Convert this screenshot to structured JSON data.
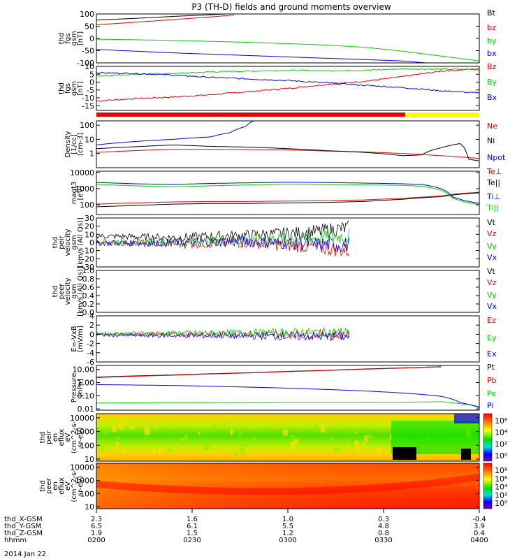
{
  "title": "P3 (TH-D) fields and ground moments overview",
  "colors": {
    "black": "#000000",
    "red": "#e60000",
    "green": "#00d000",
    "blue": "#0000ee",
    "yellow": "#ffff00"
  },
  "chart_data": [
    {
      "type": "line",
      "panel": "fgs_gsm",
      "ylabel_lines": [
        "thd",
        "fgs",
        "gsm",
        "[nT]"
      ],
      "ylim": [
        -100,
        100
      ],
      "yticks": [
        100,
        50,
        0,
        -50,
        -100
      ],
      "series": [
        {
          "name": "Bt",
          "color": "black",
          "x": [
            0,
            0.1,
            0.2,
            0.3,
            0.36
          ],
          "y": [
            75,
            82,
            90,
            97,
            102
          ]
        },
        {
          "name": "bz",
          "color": "red",
          "x": [
            0,
            0.1,
            0.2,
            0.3,
            0.36
          ],
          "y": [
            56,
            66,
            77,
            88,
            96
          ]
        },
        {
          "name": "by",
          "color": "green",
          "x": [
            0,
            0.2,
            0.4,
            0.6,
            0.7,
            0.8,
            0.9,
            1.0
          ],
          "y": [
            -3,
            -8,
            -16,
            -27,
            -36,
            -52,
            -72,
            -92
          ]
        },
        {
          "name": "bx",
          "color": "blue",
          "x": [
            0,
            0.1,
            0.2,
            0.4,
            0.6,
            0.8,
            0.86
          ],
          "y": [
            -45,
            -52,
            -59,
            -70,
            -81,
            -92,
            -100
          ]
        }
      ],
      "legend": [
        "Bt",
        "bz",
        "by",
        "bx"
      ]
    },
    {
      "type": "line",
      "panel": "fgs_gsm_zoom",
      "ylabel_lines": [
        "thd",
        "fgs",
        "gsm",
        "[nT]"
      ],
      "ylim": [
        -18,
        10
      ],
      "yticks": [
        10,
        5,
        0,
        -5,
        -10,
        -15
      ],
      "series": [
        {
          "name": "Bz",
          "color": "red",
          "x": [
            0,
            0.1,
            0.2,
            0.3,
            0.4,
            0.5,
            0.6,
            0.7,
            0.8,
            0.9,
            1.0
          ],
          "y": [
            -12,
            -10.5,
            -9.5,
            -8,
            -6,
            -4,
            -1.5,
            0.5,
            3.5,
            7,
            8.5
          ]
        },
        {
          "name": "By",
          "color": "green",
          "x": [
            0,
            0.1,
            0.2,
            0.3,
            0.4,
            0.5,
            0.6,
            0.7,
            0.8,
            0.9,
            1.0
          ],
          "y": [
            4,
            5,
            5.5,
            6.5,
            7,
            7.5,
            7.2,
            7.5,
            8.5,
            8.2,
            8
          ]
        },
        {
          "name": "Bx",
          "color": "blue",
          "x": [
            0,
            0.1,
            0.2,
            0.3,
            0.4,
            0.5,
            0.6,
            0.7,
            0.8,
            0.9,
            1.0
          ],
          "y": [
            6,
            5.5,
            4.5,
            3,
            2,
            1,
            -0.5,
            -2,
            -3.5,
            -5.5,
            -7
          ]
        }
      ],
      "legend": [
        "Bz",
        "By",
        "Bx"
      ]
    },
    {
      "type": "line",
      "panel": "density",
      "ylabel_lines": [
        "Density",
        "[1/cc]",
        "[cm-3]"
      ],
      "yscale": "log",
      "ylim": [
        0.1,
        200
      ],
      "yticks": [
        100,
        10,
        1
      ],
      "series": [
        {
          "name": "Ne",
          "color": "red",
          "x": [
            0,
            0.1,
            0.2,
            0.3,
            0.4,
            0.5,
            0.6,
            0.7,
            0.8,
            0.9,
            1.0
          ],
          "y": [
            1.2,
            1.6,
            2.0,
            2.0,
            1.9,
            1.8,
            1.5,
            1.3,
            1.0,
            0.7,
            0.45
          ]
        },
        {
          "name": "Ni",
          "color": "black",
          "x": [
            0,
            0.1,
            0.2,
            0.3,
            0.4,
            0.5,
            0.6,
            0.7,
            0.8,
            0.85,
            0.9,
            0.95,
            0.97,
            1.0
          ],
          "y": [
            2.2,
            3.0,
            4.0,
            3.2,
            2.8,
            2.2,
            1.6,
            1.2,
            0.7,
            0.8,
            2.5,
            5.0,
            0.4,
            0.3
          ]
        },
        {
          "name": "Npot",
          "color": "blue",
          "x": [
            0,
            0.1,
            0.2,
            0.3,
            0.35,
            0.39,
            0.41
          ],
          "y": [
            4.0,
            7.0,
            10.0,
            15.0,
            30.0,
            80.0,
            200.0
          ]
        }
      ],
      "legend": [
        "Ne",
        "Ni",
        "Npot"
      ]
    },
    {
      "type": "line",
      "panel": "temperature",
      "ylabel_lines": [
        "magt3",
        "[eV]"
      ],
      "yscale": "log",
      "ylim": [
        25,
        12000
      ],
      "yticks": [
        10000,
        1000,
        100
      ],
      "series": [
        {
          "name": "Te⊥",
          "color": "red",
          "x": [
            0,
            0.1,
            0.2,
            0.3,
            0.4,
            0.5,
            0.6,
            0.7,
            0.8,
            0.9,
            0.95,
            1.0
          ],
          "y": [
            110,
            130,
            150,
            160,
            160,
            170,
            180,
            200,
            250,
            350,
            500,
            600
          ]
        },
        {
          "name": "Te||",
          "color": "black",
          "x": [
            0,
            0.1,
            0.2,
            0.3,
            0.4,
            0.5,
            0.6,
            0.7,
            0.8,
            0.9,
            0.95,
            1.0
          ],
          "y": [
            75,
            90,
            110,
            120,
            120,
            130,
            140,
            160,
            220,
            320,
            450,
            550
          ]
        },
        {
          "name": "Ti⊥",
          "color": "blue",
          "x": [
            0,
            0.1,
            0.2,
            0.3,
            0.4,
            0.5,
            0.6,
            0.7,
            0.8,
            0.85,
            0.9,
            0.93,
            0.96,
            1.0
          ],
          "y": [
            2400,
            2000,
            1800,
            2100,
            2300,
            2500,
            2400,
            2200,
            2000,
            1800,
            1000,
            300,
            180,
            120
          ]
        },
        {
          "name": "Ti||",
          "color": "green",
          "x": [
            0,
            0.1,
            0.2,
            0.3,
            0.4,
            0.5,
            0.6,
            0.7,
            0.8,
            0.85,
            0.9,
            0.93,
            0.96,
            1.0
          ],
          "y": [
            1800,
            1500,
            1300,
            1500,
            1700,
            1900,
            1800,
            1700,
            1600,
            1400,
            800,
            250,
            150,
            100
          ]
        }
      ],
      "legend": [
        "Te⊥",
        "Te||",
        "Ti⊥",
        "Ti||"
      ]
    },
    {
      "type": "line",
      "panel": "peir_velocity",
      "ylabel_lines": [
        "thd",
        "peir",
        "velocity",
        "gsm",
        "[km/s (All Qs)]"
      ],
      "ylim": [
        -30,
        30
      ],
      "yticks": [
        30,
        20,
        10,
        0,
        -10,
        -20,
        -30
      ],
      "x_end": 0.66,
      "series": [
        {
          "name": "Vt",
          "color": "black",
          "x": [
            0,
            0.2,
            0.4,
            0.55,
            0.66
          ],
          "y": [
            8,
            6,
            9,
            12,
            18
          ]
        },
        {
          "name": "Vz",
          "color": "red",
          "x": [
            0,
            0.2,
            0.4,
            0.55,
            0.66
          ],
          "y": [
            0,
            -2,
            0,
            -5,
            -10
          ]
        },
        {
          "name": "Vy",
          "color": "green",
          "x": [
            0,
            0.2,
            0.4,
            0.55,
            0.66
          ],
          "y": [
            2,
            0,
            3,
            5,
            8
          ]
        },
        {
          "name": "Vx",
          "color": "blue",
          "x": [
            0,
            0.2,
            0.4,
            0.55,
            0.66
          ],
          "y": [
            -1,
            0,
            1,
            -2,
            -3
          ]
        }
      ],
      "legend": [
        "Vt",
        "Vz",
        "Vy",
        "Vx"
      ]
    },
    {
      "type": "line",
      "panel": "peer_velocity",
      "ylabel_lines": [
        "thd",
        "peer",
        "velocity",
        "gsm",
        "[km/s (All Qs)]"
      ],
      "ylim": [
        0,
        1.0
      ],
      "yticks": [
        1.0,
        0.8,
        0.6,
        0.4,
        0.2,
        0.0
      ],
      "ytick_labels": [
        "1.0",
        "0.8",
        "0.6",
        "0.4",
        "0.2",
        "0.0"
      ],
      "series": [],
      "legend": [
        "Vt",
        "Vz",
        "Vy",
        "Vx"
      ]
    },
    {
      "type": "line",
      "panel": "efield",
      "ylabel_lines": [
        "E=-VxB",
        "[mV/m]"
      ],
      "ylim": [
        -6,
        4
      ],
      "yticks": [
        4,
        2,
        0,
        -2,
        -4,
        -6
      ],
      "x_end": 0.66,
      "series": [
        {
          "name": "Ez",
          "color": "red",
          "x": [
            0,
            0.3,
            0.66
          ],
          "y": [
            0,
            0,
            0
          ]
        },
        {
          "name": "Ey",
          "color": "green",
          "x": [
            0,
            0.3,
            0.66
          ],
          "y": [
            0.2,
            0.3,
            0.5
          ]
        },
        {
          "name": "Ex",
          "color": "blue",
          "x": [
            0,
            0.3,
            0.66
          ],
          "y": [
            -0.2,
            -0.3,
            -0.5
          ]
        }
      ],
      "legend": [
        "Ez",
        "Ey",
        "Ex"
      ]
    },
    {
      "type": "line",
      "panel": "pressure",
      "ylabel_lines": [
        "Pressure",
        "[nPa]"
      ],
      "yscale": "log",
      "ylim": [
        0.008,
        20
      ],
      "yticks": [
        10,
        1,
        0.1,
        0.01
      ],
      "ytick_labels": [
        "10.00",
        "1.00",
        "0.10",
        "0.01"
      ],
      "series": [
        {
          "name": "Pt",
          "color": "black",
          "x": [
            0,
            0.2,
            0.4,
            0.6,
            0.8,
            0.9
          ],
          "y": [
            2.6,
            3.8,
            5.6,
            8.5,
            13,
            16
          ]
        },
        {
          "name": "Pb",
          "color": "red",
          "x": [
            0,
            0.2,
            0.4,
            0.6,
            0.8,
            0.9
          ],
          "y": [
            2.4,
            3.6,
            5.4,
            8.2,
            12.5,
            15.5
          ]
        },
        {
          "name": "Pe",
          "color": "green",
          "x": [
            0,
            0.2,
            0.4,
            0.6,
            0.8,
            0.9,
            1.0
          ],
          "y": [
            0.028,
            0.03,
            0.031,
            0.032,
            0.032,
            0.035,
            0.015
          ]
        },
        {
          "name": "Pi",
          "color": "blue",
          "x": [
            0,
            0.2,
            0.4,
            0.6,
            0.8,
            0.9,
            0.95,
            1.0
          ],
          "y": [
            0.7,
            0.6,
            0.45,
            0.3,
            0.16,
            0.09,
            0.03,
            0.012
          ]
        }
      ],
      "legend": [
        "Pt",
        "Pb",
        "Pe",
        "Pi"
      ]
    },
    {
      "type": "heatmap",
      "panel": "peir_spectrogram",
      "ylabel_lines": [
        "thd",
        "peir",
        "en",
        "eflux",
        "eV",
        "(cm^2-s-",
        "sr-eV)"
      ],
      "yscale": "log",
      "ylim": [
        7,
        20000
      ],
      "yticks": [
        10000,
        1000,
        100,
        10
      ],
      "colorbar_ticks": [
        "10⁶",
        "10⁴",
        "10²",
        "10⁰"
      ]
    },
    {
      "type": "heatmap",
      "panel": "peer_spectrogram",
      "ylabel_lines": [
        "thd",
        "peer",
        "en",
        "eflux",
        "eV",
        "(cm^2-s-",
        "sr-eV)"
      ],
      "yscale": "log",
      "ylim": [
        7,
        20000
      ],
      "yticks": [
        10000,
        1000,
        100,
        10
      ],
      "colorbar_ticks": [
        "10⁸",
        "10⁶",
        "10⁴",
        "10²",
        "10⁰"
      ]
    }
  ],
  "time_axis": {
    "rows": [
      {
        "label": "thd_X-GSM",
        "values": [
          "2.3",
          "1.6",
          "1.0",
          "0.3",
          "-0.4"
        ]
      },
      {
        "label": "thd_Y-GSM",
        "values": [
          "6.5",
          "6.1",
          "5.5",
          "4.8",
          "3.9"
        ]
      },
      {
        "label": "thd_Z-GSM",
        "values": [
          "1.9",
          "1.5",
          "1.2",
          "0.8",
          "0.4"
        ]
      },
      {
        "label": "hhmm",
        "values": [
          "0200",
          "0230",
          "0300",
          "0330",
          "0400"
        ]
      }
    ],
    "date": "2014 Jan 22"
  }
}
